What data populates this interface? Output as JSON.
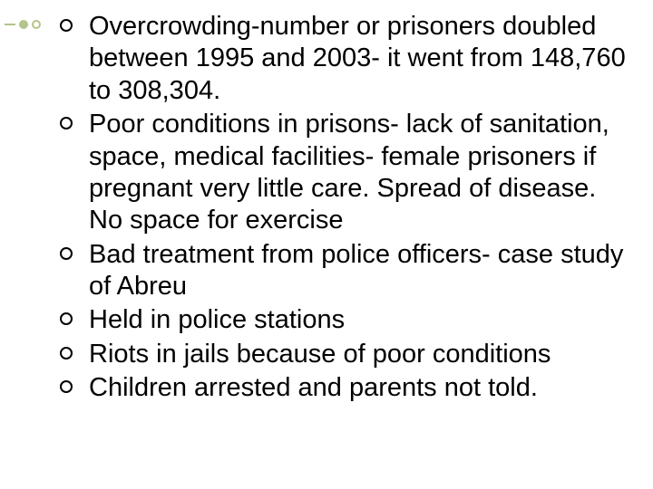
{
  "text_color": "#000000",
  "accent_color": "#b4c48a",
  "background_color": "#ffffff",
  "font_family": "Trebuchet MS",
  "font_size_pt": 22,
  "bullets": [
    "Overcrowding-number or prisoners doubled between 1995 and 2003- it went from 148,760 to 308,304.",
    "Poor conditions in prisons- lack of sanitation, space, medical facilities- female prisoners if pregnant very little care. Spread of disease. No space for exercise",
    "Bad treatment from police officers- case study of Abreu",
    "Held in police stations",
    "Riots in jails because of poor conditions",
    "Children arrested and parents not told."
  ]
}
